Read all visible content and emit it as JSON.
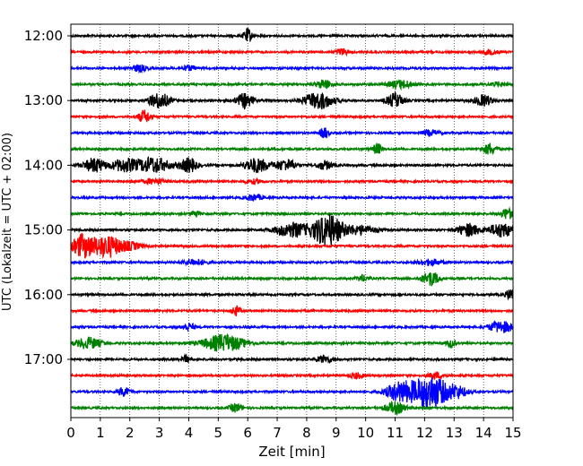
{
  "chart_data": {
    "type": "line",
    "title": "",
    "xlabel": "Zeit  [min]",
    "ylabel": "UTC (Lokalzeit = UTC + 02:00)",
    "xlim": [
      0,
      15
    ],
    "x_ticks": [
      "0",
      "1",
      "2",
      "3",
      "4",
      "5",
      "6",
      "7",
      "8",
      "9",
      "10",
      "11",
      "12",
      "13",
      "14",
      "15"
    ],
    "y_ticks": [
      "12:00",
      "13:00",
      "14:00",
      "15:00",
      "16:00",
      "17:00"
    ],
    "grid": "vertical dotted at each minute",
    "trace_interval_min": 15,
    "start_time": "12:00",
    "trace_colors": [
      "#000000",
      "#ff0000",
      "#0000ff",
      "#008000"
    ],
    "traces": [
      {
        "start": "12:00",
        "bursts": [
          [
            6.0,
            0.1,
            1.0
          ]
        ]
      },
      {
        "start": "12:15",
        "bursts": [
          [
            9.2,
            0.15,
            0.45
          ],
          [
            14.2,
            0.2,
            0.3
          ]
        ]
      },
      {
        "start": "12:30",
        "bursts": [
          [
            2.3,
            0.2,
            0.45
          ],
          [
            4.0,
            0.2,
            0.3
          ]
        ]
      },
      {
        "start": "12:45",
        "bursts": [
          [
            8.6,
            0.2,
            0.6
          ],
          [
            11.2,
            0.3,
            0.55
          ],
          [
            14.5,
            0.2,
            0.3
          ]
        ]
      },
      {
        "start": "13:00",
        "bursts": [
          [
            3.0,
            0.25,
            1.1
          ],
          [
            5.9,
            0.2,
            1.0
          ],
          [
            8.4,
            0.35,
            1.2
          ],
          [
            11.0,
            0.2,
            1.0
          ],
          [
            14.0,
            0.2,
            0.8
          ]
        ]
      },
      {
        "start": "13:15",
        "bursts": [
          [
            2.5,
            0.15,
            0.9
          ]
        ]
      },
      {
        "start": "13:30",
        "bursts": [
          [
            8.6,
            0.1,
            0.8
          ],
          [
            12.2,
            0.2,
            0.4
          ]
        ]
      },
      {
        "start": "13:45",
        "bursts": [
          [
            10.4,
            0.1,
            0.8
          ],
          [
            14.2,
            0.15,
            0.8
          ]
        ]
      },
      {
        "start": "14:00",
        "bursts": [
          [
            0.8,
            0.25,
            1.0
          ],
          [
            1.8,
            0.3,
            0.9
          ],
          [
            2.8,
            0.4,
            1.1
          ],
          [
            4.0,
            0.2,
            1.0
          ],
          [
            6.3,
            0.3,
            1.0
          ],
          [
            7.3,
            0.25,
            0.8
          ],
          [
            8.6,
            0.2,
            0.6
          ]
        ]
      },
      {
        "start": "14:15",
        "bursts": [
          [
            2.8,
            0.3,
            0.35
          ],
          [
            6.2,
            0.2,
            0.3
          ]
        ]
      },
      {
        "start": "14:30",
        "bursts": [
          [
            6.2,
            0.2,
            0.45
          ]
        ]
      },
      {
        "start": "14:45",
        "bursts": [
          [
            4.2,
            0.1,
            0.5
          ],
          [
            14.8,
            0.15,
            0.8
          ]
        ]
      },
      {
        "start": "15:00",
        "bursts": [
          [
            7.5,
            0.4,
            1.0
          ],
          [
            8.7,
            0.35,
            2.3
          ],
          [
            9.8,
            0.4,
            0.6
          ],
          [
            13.5,
            0.25,
            0.9
          ],
          [
            14.6,
            0.3,
            1.0
          ]
        ]
      },
      {
        "start": "15:15",
        "bursts": [
          [
            0.4,
            0.25,
            1.6
          ],
          [
            1.2,
            0.35,
            1.5
          ],
          [
            2.0,
            0.3,
            0.5
          ]
        ]
      },
      {
        "start": "15:30",
        "bursts": [
          [
            4.2,
            0.3,
            0.4
          ],
          [
            12.2,
            0.3,
            0.4
          ]
        ]
      },
      {
        "start": "15:45",
        "bursts": [
          [
            9.9,
            0.15,
            0.4
          ],
          [
            12.2,
            0.2,
            1.0
          ]
        ]
      },
      {
        "start": "16:00",
        "bursts": [
          [
            14.9,
            0.1,
            0.8
          ]
        ]
      },
      {
        "start": "16:15",
        "bursts": [
          [
            5.6,
            0.1,
            0.7
          ]
        ]
      },
      {
        "start": "16:30",
        "bursts": [
          [
            4.0,
            0.15,
            0.5
          ],
          [
            14.6,
            0.3,
            0.8
          ]
        ]
      },
      {
        "start": "16:45",
        "bursts": [
          [
            0.6,
            0.3,
            0.8
          ],
          [
            5.2,
            0.5,
            1.2
          ],
          [
            12.9,
            0.1,
            0.6
          ]
        ]
      },
      {
        "start": "17:00",
        "bursts": [
          [
            3.9,
            0.1,
            0.5
          ],
          [
            8.6,
            0.2,
            0.5
          ]
        ]
      },
      {
        "start": "17:15",
        "bursts": [
          [
            9.7,
            0.15,
            0.4
          ],
          [
            12.4,
            0.2,
            0.4
          ]
        ]
      },
      {
        "start": "17:30",
        "bursts": [
          [
            1.8,
            0.15,
            0.6
          ],
          [
            11.2,
            0.35,
            1.4
          ],
          [
            12.2,
            0.4,
            2.4
          ],
          [
            13.1,
            0.25,
            0.8
          ]
        ]
      },
      {
        "start": "17:45",
        "bursts": [
          [
            5.6,
            0.15,
            0.6
          ],
          [
            11.0,
            0.25,
            0.8
          ]
        ]
      }
    ]
  }
}
